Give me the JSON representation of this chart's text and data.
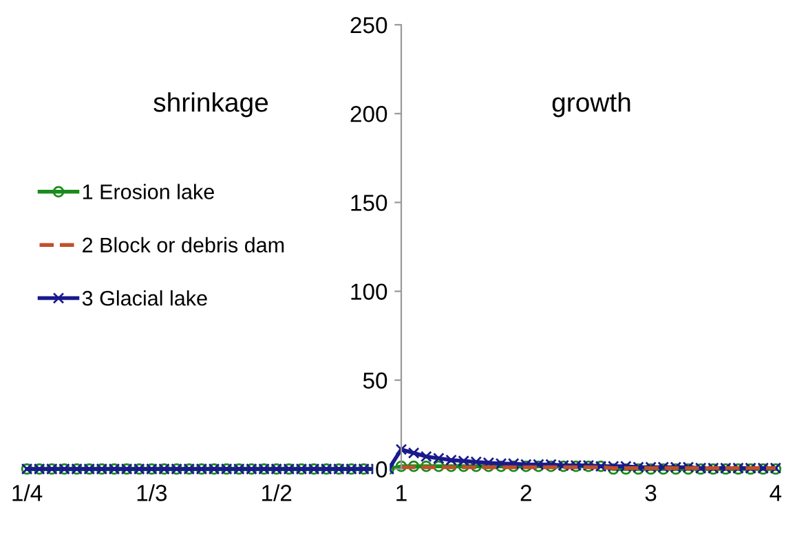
{
  "chart_data": {
    "type": "line",
    "categories": [
      "1/4",
      null,
      null,
      null,
      null,
      null,
      null,
      null,
      null,
      null,
      "1/3",
      null,
      null,
      null,
      null,
      null,
      null,
      null,
      null,
      null,
      "1/2",
      null,
      null,
      null,
      null,
      null,
      null,
      null,
      null,
      null,
      "1",
      null,
      null,
      null,
      null,
      null,
      null,
      null,
      null,
      null,
      "2",
      null,
      null,
      null,
      null,
      null,
      null,
      null,
      null,
      null,
      "3",
      null,
      null,
      null,
      null,
      null,
      null,
      null,
      null,
      null,
      "4"
    ],
    "series": [
      {
        "name": "1 Erosion lake",
        "color": "#1a8a1a",
        "marker": "circle",
        "line_style": "solid",
        "values": [
          0,
          0,
          0,
          0,
          0,
          0,
          0,
          0,
          0,
          0,
          0,
          0,
          0,
          0,
          0,
          0,
          0,
          0,
          0,
          0,
          0,
          0,
          0,
          0,
          0,
          0,
          0,
          0,
          0,
          0,
          1.5,
          1.5,
          1.5,
          1.5,
          1.5,
          1.5,
          1.5,
          1.5,
          1.5,
          1.5,
          1.5,
          1.5,
          1.5,
          1.5,
          1.5,
          1.5,
          1.5,
          0,
          0,
          0,
          0,
          0,
          0,
          0,
          0,
          0,
          0,
          0,
          0,
          0,
          0
        ]
      },
      {
        "name": "2 Block or debris dam",
        "color": "#c0502a",
        "marker": "none",
        "line_style": "dashed",
        "values": [
          null,
          null,
          null,
          null,
          null,
          null,
          null,
          null,
          null,
          null,
          null,
          null,
          null,
          null,
          null,
          null,
          null,
          null,
          null,
          null,
          null,
          null,
          null,
          null,
          null,
          null,
          null,
          null,
          null,
          null,
          1,
          1,
          1,
          1,
          1,
          1,
          1,
          1,
          1,
          1,
          1,
          1,
          1,
          1,
          1,
          1,
          1,
          0.5,
          0.5,
          0.5,
          0.5,
          0.5,
          0.5,
          0.5,
          0.5,
          0.5,
          0.5,
          0.5,
          0.5,
          0.5,
          0.5
        ]
      },
      {
        "name": "3 Glacial lake",
        "color": "#1a1a8c",
        "marker": "cross",
        "line_style": "solid",
        "values": [
          0,
          0,
          0,
          0,
          0,
          0,
          0,
          0,
          0,
          0,
          0,
          0,
          0,
          0,
          0,
          0,
          0,
          0,
          0,
          0,
          0,
          0,
          0,
          0,
          0,
          0,
          0,
          0,
          0,
          0,
          11,
          9,
          7,
          6,
          5,
          4.5,
          4,
          3.5,
          3,
          3,
          2.5,
          2.5,
          2.5,
          2,
          2,
          2,
          1.5,
          1.5,
          1.5,
          1,
          1,
          1,
          1,
          1,
          0.5,
          0.5,
          0.5,
          0.5,
          0.5,
          0.5,
          0.5
        ]
      }
    ],
    "ylim": [
      0,
      250
    ],
    "yticks": [
      0,
      50,
      100,
      150,
      200,
      250
    ],
    "annotations": [
      "shrinkage",
      "growth"
    ],
    "grid": false,
    "legend": "left"
  }
}
